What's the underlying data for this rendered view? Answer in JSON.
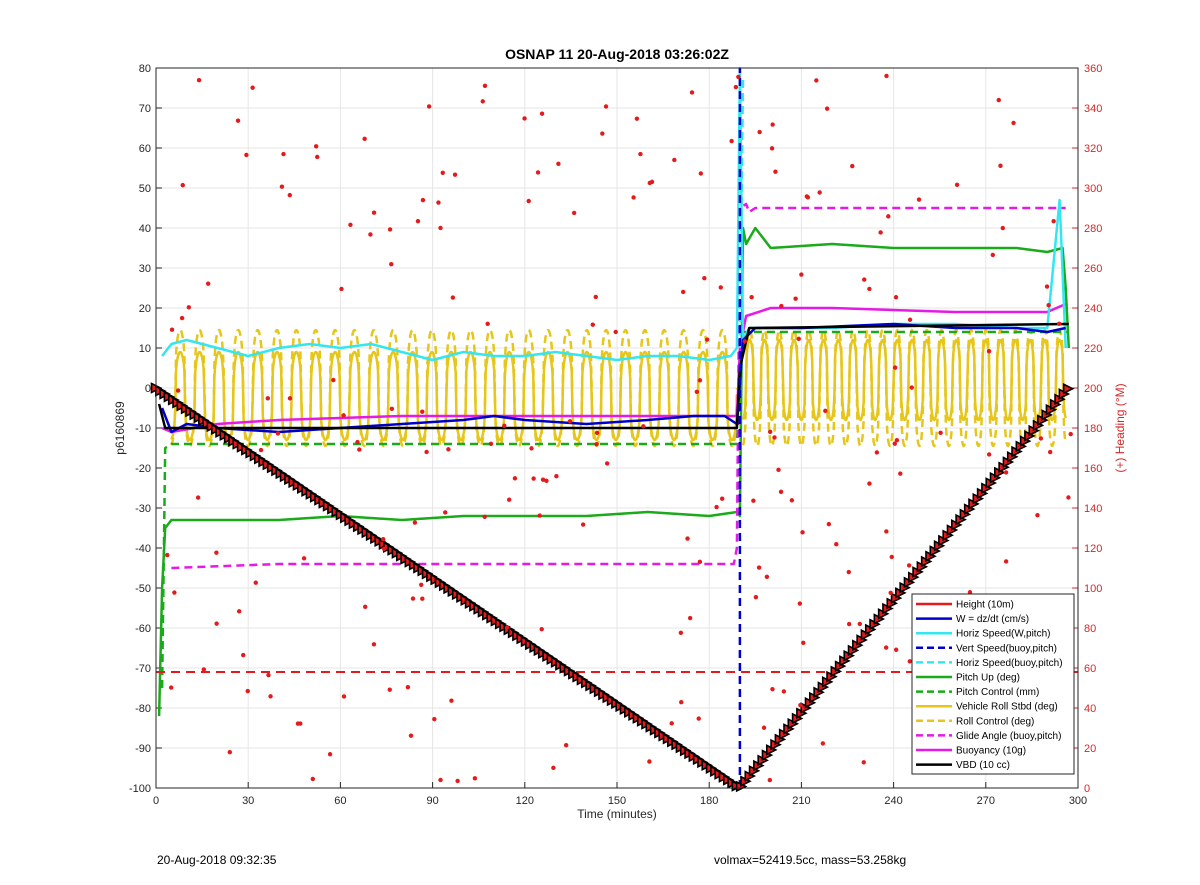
{
  "chart_data": {
    "type": "line",
    "title": "OSNAP 11 20-Aug-2018 03:26:02Z",
    "xlabel": "Time (minutes)",
    "ylabel": "p6160869",
    "y2label": "(+) Heading (°M)",
    "xlim": [
      0,
      300
    ],
    "ylim": [
      -100,
      80
    ],
    "y2lim": [
      0,
      360
    ],
    "xticks": [
      0,
      30,
      60,
      90,
      120,
      150,
      180,
      210,
      240,
      270,
      300
    ],
    "yticks": [
      80,
      70,
      60,
      50,
      40,
      30,
      20,
      10,
      0,
      -10,
      -20,
      -30,
      -40,
      -50,
      -60,
      -70,
      -80,
      -90,
      -100
    ],
    "y2ticks": [
      360,
      340,
      320,
      300,
      280,
      260,
      240,
      220,
      200,
      180,
      160,
      140,
      120,
      100,
      80,
      60,
      40,
      20,
      0
    ],
    "grid": true,
    "legend_position": "bottom-right",
    "series": [
      {
        "name": "Height (10m)",
        "color": "#e41a1c",
        "style": "solid",
        "x": [
          0,
          190,
          297
        ],
        "y": [
          0,
          -100,
          0
        ]
      },
      {
        "name": "W = dz/dt (cm/s)",
        "color": "#0000cc",
        "style": "solid",
        "x": [
          2,
          5,
          10,
          20,
          40,
          60,
          80,
          100,
          110,
          120,
          140,
          160,
          175,
          185,
          189,
          191,
          195,
          210,
          240,
          260,
          280,
          290,
          296
        ],
        "y": [
          -5,
          -11,
          -9,
          -10,
          -11,
          -10,
          -9,
          -8,
          -7,
          -8,
          -9,
          -8,
          -7,
          -7,
          -9,
          12,
          15,
          15,
          16,
          15,
          15,
          14,
          15
        ]
      },
      {
        "name": "Horiz Speed(W,pitch)",
        "color": "#33e6f0",
        "style": "solid",
        "x": [
          2,
          5,
          10,
          20,
          30,
          40,
          50,
          60,
          70,
          80,
          90,
          100,
          110,
          120,
          130,
          140,
          150,
          160,
          170,
          180,
          187,
          189,
          190,
          191,
          193,
          200,
          220,
          240,
          260,
          280,
          290,
          294,
          296
        ],
        "y": [
          8,
          11,
          12,
          10,
          8,
          10,
          11,
          10,
          11,
          9,
          7,
          9,
          8,
          8,
          9,
          8,
          7,
          8,
          8,
          7,
          8,
          10,
          80,
          12,
          15,
          15,
          15,
          16,
          16,
          15,
          15,
          47,
          10
        ]
      },
      {
        "name": "Vert Speed(buoy,pitch)",
        "color": "#0000cc",
        "style": "dashed",
        "x": [
          190,
          190
        ],
        "y": [
          -100,
          80
        ]
      },
      {
        "name": "Horiz Speed(buoy,pitch)",
        "color": "#33e6f0",
        "style": "dashed",
        "x": [
          190,
          191
        ],
        "y": [
          10,
          78
        ]
      },
      {
        "name": "Pitch Up (deg)",
        "color": "#1aaa1a",
        "style": "solid",
        "x": [
          1,
          2,
          3,
          5,
          10,
          20,
          40,
          60,
          80,
          100,
          120,
          140,
          160,
          180,
          189,
          190,
          191,
          192,
          195,
          200,
          220,
          240,
          260,
          280,
          290,
          295,
          296,
          297
        ],
        "y": [
          -82,
          -50,
          -35,
          -33,
          -33,
          -33,
          -33,
          -32,
          -33,
          -32,
          -32,
          -32,
          -31,
          -32,
          -31,
          -32,
          40,
          36,
          40,
          35,
          36,
          35,
          35,
          35,
          34,
          35,
          25,
          10
        ]
      },
      {
        "name": "Pitch Control (mm)",
        "color": "#1aaa1a",
        "style": "dashed",
        "x": [
          2,
          3,
          5,
          100,
          189,
          190,
          191,
          297
        ],
        "y": [
          -75,
          -15,
          -14,
          -14,
          -14,
          0,
          14,
          14
        ]
      },
      {
        "name": "Vehicle Roll Stbd (deg)",
        "color": "#e6c619",
        "style": "solid",
        "x": [
          5,
          189,
          191,
          296
        ],
        "y": [
          -2,
          -2,
          3,
          3
        ]
      },
      {
        "name": "Roll Control (deg)",
        "color": "#e6c619",
        "style": "dashed",
        "x": [
          5,
          189,
          191,
          296
        ],
        "y": [
          0,
          0,
          0,
          0
        ]
      },
      {
        "name": "Glide Angle (buoy,pitch)",
        "color": "#e619e6",
        "style": "dashed",
        "x": [
          5,
          40,
          80,
          120,
          160,
          188,
          189,
          190,
          192,
          193,
          195,
          220,
          260,
          296
        ],
        "y": [
          -45,
          -44,
          -44,
          -44,
          -44,
          -44,
          -40,
          45,
          46,
          44,
          45,
          45,
          45,
          45
        ]
      },
      {
        "name": "Buoyancy (10g)",
        "color": "#e619e6",
        "style": "solid",
        "x": [
          2,
          5,
          20,
          40,
          80,
          120,
          160,
          189,
          190,
          192,
          200,
          220,
          260,
          290,
          296
        ],
        "y": [
          -10,
          -11,
          -9,
          -8,
          -7,
          -7,
          -7,
          -7,
          10,
          18,
          20,
          20,
          19,
          19,
          21
        ]
      },
      {
        "name": "VBD (10 cc)",
        "color": "#000000",
        "style": "solid",
        "x": [
          1,
          3,
          189,
          190,
          193,
          296,
          297
        ],
        "y": [
          -4,
          -10,
          -10,
          5,
          15,
          16,
          16
        ]
      },
      {
        "name": "Heading",
        "color": "#e41a1c",
        "style": "dashed-ref",
        "x": [
          0,
          300
        ],
        "y2": [
          58,
          58
        ]
      }
    ]
  },
  "footer": {
    "left": "20-Aug-2018 09:32:35",
    "right": "volmax=52419.5cc, mass=53.258kg"
  }
}
